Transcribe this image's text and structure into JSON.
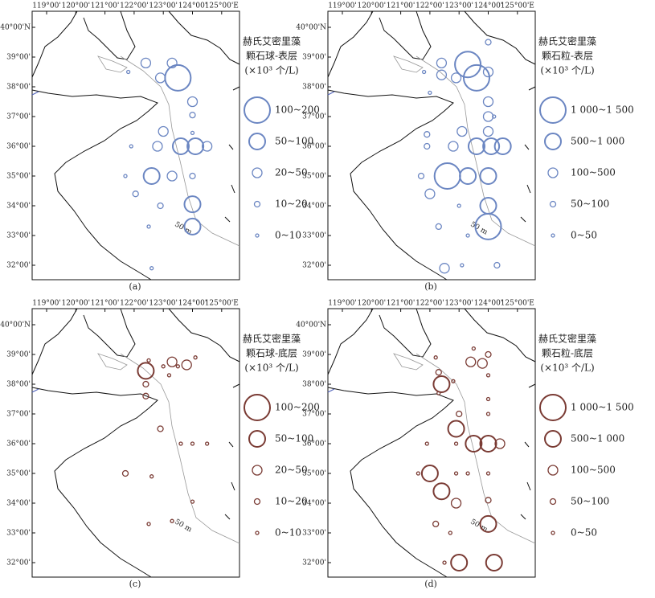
{
  "lon_ticks": [
    {
      "value": 119,
      "label": "119°00'"
    },
    {
      "value": 120,
      "label": "120°00'"
    },
    {
      "value": 121,
      "label": "121°00'"
    },
    {
      "value": 122,
      "label": "122°00'"
    },
    {
      "value": 123,
      "label": "123°00'"
    },
    {
      "value": 124,
      "label": "124°00'"
    },
    {
      "value": 125,
      "label": "125°00'E"
    }
  ],
  "lat_ticks": [
    {
      "value": 40,
      "label": "40°00'N"
    },
    {
      "value": 39,
      "label": "39°00'"
    },
    {
      "value": 38,
      "label": "38°00'"
    },
    {
      "value": 37,
      "label": "37°00'"
    },
    {
      "value": 36,
      "label": "36°00'"
    },
    {
      "value": 35,
      "label": "35°00'"
    },
    {
      "value": 34,
      "label": "34°00'"
    },
    {
      "value": 33,
      "label": "33°00'"
    },
    {
      "value": 32,
      "label": "32°00'"
    }
  ],
  "isobath_label": "50 m",
  "panels": [
    {
      "label": "(a)",
      "color": "#6b86c2",
      "legend_title": [
        "赫氏艾密里藻",
        "颗石球-表层",
        "(×10³ 个/L)"
      ],
      "legend": [
        "100~200",
        "50~100",
        "20~50",
        "10~20",
        "0~10"
      ],
      "stations": [
        [
          122.4,
          38.8,
          2
        ],
        [
          123.3,
          38.8,
          2
        ],
        [
          123.5,
          38.3,
          0
        ],
        [
          122.9,
          38.3,
          2
        ],
        [
          121.8,
          38.5,
          4
        ],
        [
          124.0,
          37.5,
          2
        ],
        [
          124.0,
          37.05,
          3
        ],
        [
          123.0,
          36.5,
          2
        ],
        [
          122.8,
          36.0,
          2
        ],
        [
          123.6,
          36.0,
          1
        ],
        [
          124.1,
          36.0,
          1
        ],
        [
          124.5,
          36.0,
          2
        ],
        [
          122.6,
          35.0,
          1
        ],
        [
          123.3,
          35.0,
          2
        ],
        [
          124.0,
          35.0,
          3
        ],
        [
          124.0,
          34.05,
          1
        ],
        [
          124.0,
          33.3,
          1
        ],
        [
          121.9,
          36.0,
          4
        ],
        [
          121.7,
          35.0,
          4
        ],
        [
          122.05,
          34.4,
          3
        ],
        [
          122.9,
          34.0,
          3
        ],
        [
          122.5,
          33.3,
          4
        ],
        [
          122.6,
          31.9,
          4
        ],
        [
          124.0,
          36.45,
          4
        ]
      ]
    },
    {
      "label": "(b)",
      "color": "#6b86c2",
      "legend_title": [
        "赫氏艾密里藻",
        "颗石粒-表层",
        "(×10³ 个/L)"
      ],
      "legend": [
        "1 000~1 500",
        "500~1 000",
        "100~500",
        "50~100",
        "0~50"
      ],
      "stations": [
        [
          123.3,
          38.75,
          0
        ],
        [
          123.6,
          38.3,
          0
        ],
        [
          124.0,
          38.5,
          2
        ],
        [
          122.4,
          38.8,
          2
        ],
        [
          122.4,
          38.4,
          2
        ],
        [
          122.9,
          38.3,
          2
        ],
        [
          124.0,
          37.5,
          2
        ],
        [
          124.0,
          37.0,
          2
        ],
        [
          124.0,
          36.5,
          2
        ],
        [
          122.8,
          36.0,
          2
        ],
        [
          123.1,
          36.5,
          2
        ],
        [
          123.6,
          36.0,
          1
        ],
        [
          124.1,
          36.0,
          1
        ],
        [
          124.5,
          36.0,
          1
        ],
        [
          122.6,
          35.0,
          0
        ],
        [
          123.3,
          35.0,
          1
        ],
        [
          124.0,
          35.0,
          1
        ],
        [
          124.0,
          34.0,
          1
        ],
        [
          124.0,
          33.3,
          0
        ],
        [
          121.7,
          35.0,
          3
        ],
        [
          122.0,
          34.4,
          2
        ],
        [
          122.3,
          33.3,
          3
        ],
        [
          122.5,
          31.9,
          2
        ],
        [
          123.1,
          32.0,
          4
        ],
        [
          124.3,
          32.0,
          3
        ],
        [
          123.0,
          34.0,
          4
        ],
        [
          123.3,
          33.0,
          4
        ],
        [
          121.9,
          36.4,
          3
        ],
        [
          121.9,
          36.0,
          3
        ],
        [
          124.0,
          39.5,
          3
        ],
        [
          121.8,
          38.5,
          4
        ],
        [
          122.0,
          37.8,
          4
        ],
        [
          124.2,
          37.0,
          4
        ]
      ]
    },
    {
      "label": "(c)",
      "color": "#7a3b34",
      "legend_title": [
        "赫氏艾密里藻",
        "颗石球-底层",
        "(×10³ 个/L)"
      ],
      "legend": [
        "100~200",
        "50~100",
        "20~50",
        "10~20",
        "0~10"
      ],
      "stations": [
        [
          122.4,
          38.45,
          1
        ],
        [
          123.3,
          38.75,
          2
        ],
        [
          123.8,
          38.65,
          2
        ],
        [
          122.4,
          38.0,
          3
        ],
        [
          122.4,
          37.6,
          3
        ],
        [
          122.5,
          38.8,
          4
        ],
        [
          123.0,
          38.6,
          4
        ],
        [
          124.1,
          38.9,
          4
        ],
        [
          123.2,
          38.3,
          4
        ],
        [
          123.5,
          38.6,
          4
        ],
        [
          122.9,
          36.5,
          3
        ],
        [
          123.6,
          36.0,
          4
        ],
        [
          124.0,
          36.0,
          4
        ],
        [
          124.5,
          36.0,
          4
        ],
        [
          121.7,
          35.0,
          3
        ],
        [
          122.6,
          34.9,
          4
        ],
        [
          124.0,
          34.05,
          4
        ],
        [
          122.5,
          33.3,
          4
        ],
        [
          123.3,
          33.4,
          4
        ]
      ]
    },
    {
      "label": "(d)",
      "color": "#7a3b34",
      "legend_title": [
        "赫氏艾密里藻",
        "颗石粒-底层",
        "(×10³ 个/L)"
      ],
      "legend": [
        "1 000~1 500",
        "500~1 000",
        "100~500",
        "50~100",
        "0~50"
      ],
      "stations": [
        [
          122.4,
          38.0,
          1
        ],
        [
          123.4,
          38.75,
          2
        ],
        [
          123.8,
          38.7,
          2
        ],
        [
          122.3,
          38.4,
          3
        ],
        [
          122.3,
          37.7,
          4
        ],
        [
          122.8,
          38.1,
          4
        ],
        [
          124.0,
          39.0,
          3
        ],
        [
          123.5,
          39.2,
          4
        ],
        [
          124.0,
          38.3,
          4
        ],
        [
          122.2,
          38.9,
          4
        ],
        [
          123.0,
          37.0,
          3
        ],
        [
          122.9,
          36.5,
          1
        ],
        [
          123.5,
          36.0,
          1
        ],
        [
          124.0,
          36.0,
          1
        ],
        [
          124.4,
          36.0,
          2
        ],
        [
          121.9,
          36.0,
          4
        ],
        [
          122.9,
          36.0,
          4
        ],
        [
          124.0,
          37.5,
          4
        ],
        [
          124.0,
          37.0,
          4
        ],
        [
          122.0,
          35.0,
          1
        ],
        [
          122.4,
          34.4,
          1
        ],
        [
          122.9,
          34.0,
          2
        ],
        [
          124.0,
          34.1,
          3
        ],
        [
          124.0,
          33.3,
          1
        ],
        [
          122.2,
          33.3,
          3
        ],
        [
          122.7,
          33.0,
          4
        ],
        [
          123.3,
          35.0,
          4
        ],
        [
          124.0,
          35.0,
          4
        ],
        [
          122.5,
          32.0,
          4
        ],
        [
          123.0,
          32.0,
          1
        ],
        [
          124.2,
          32.0,
          1
        ],
        [
          121.6,
          35.0,
          4
        ],
        [
          122.9,
          35.0,
          4
        ]
      ]
    }
  ]
}
